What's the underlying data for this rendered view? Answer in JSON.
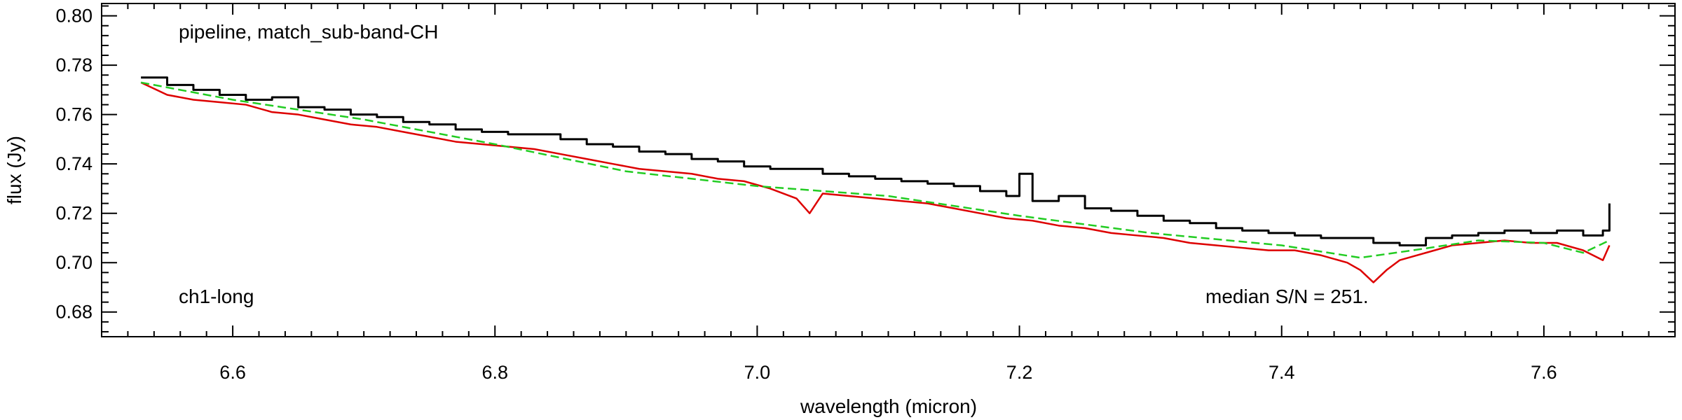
{
  "chart_data": {
    "type": "line",
    "xlabel": "wavelength (micron)",
    "ylabel": "flux (Jy)",
    "xlim": [
      6.5,
      7.7
    ],
    "ylim": [
      0.67,
      0.805
    ],
    "xticks": [
      {
        "value": 6.6,
        "label": "6.6"
      },
      {
        "value": 6.8,
        "label": "6.8"
      },
      {
        "value": 7.0,
        "label": "7.0"
      },
      {
        "value": 7.2,
        "label": "7.2"
      },
      {
        "value": 7.4,
        "label": "7.4"
      },
      {
        "value": 7.6,
        "label": "7.6"
      }
    ],
    "yticks": [
      {
        "value": 0.68,
        "label": "0.68"
      },
      {
        "value": 0.7,
        "label": "0.70"
      },
      {
        "value": 0.72,
        "label": "0.72"
      },
      {
        "value": 0.74,
        "label": "0.74"
      },
      {
        "value": 0.76,
        "label": "0.76"
      },
      {
        "value": 0.78,
        "label": "0.78"
      },
      {
        "value": 0.8,
        "label": "0.80"
      }
    ],
    "annotations": {
      "top_left": "pipeline, match_sub-band-CH",
      "bottom_left": "ch1-long",
      "bottom_right": "median S/N = 251."
    },
    "grid": false,
    "legend": "none",
    "series": [
      {
        "style": "step",
        "color": "#000000",
        "x": [
          6.53,
          6.55,
          6.57,
          6.59,
          6.61,
          6.63,
          6.65,
          6.67,
          6.69,
          6.71,
          6.73,
          6.75,
          6.77,
          6.79,
          6.81,
          6.83,
          6.85,
          6.87,
          6.89,
          6.91,
          6.93,
          6.95,
          6.97,
          6.99,
          7.01,
          7.03,
          7.05,
          7.07,
          7.09,
          7.11,
          7.13,
          7.15,
          7.17,
          7.19,
          7.2,
          7.21,
          7.23,
          7.25,
          7.27,
          7.29,
          7.31,
          7.33,
          7.35,
          7.37,
          7.39,
          7.41,
          7.43,
          7.45,
          7.47,
          7.49,
          7.51,
          7.53,
          7.55,
          7.57,
          7.59,
          7.61,
          7.63,
          7.645,
          7.65
        ],
        "y": [
          0.775,
          0.772,
          0.77,
          0.768,
          0.766,
          0.767,
          0.763,
          0.762,
          0.76,
          0.759,
          0.757,
          0.756,
          0.754,
          0.753,
          0.752,
          0.752,
          0.75,
          0.748,
          0.747,
          0.745,
          0.744,
          0.742,
          0.741,
          0.739,
          0.738,
          0.738,
          0.736,
          0.735,
          0.734,
          0.733,
          0.732,
          0.731,
          0.729,
          0.727,
          0.736,
          0.725,
          0.727,
          0.722,
          0.721,
          0.719,
          0.717,
          0.716,
          0.714,
          0.713,
          0.712,
          0.711,
          0.71,
          0.71,
          0.708,
          0.707,
          0.71,
          0.711,
          0.712,
          0.713,
          0.712,
          0.713,
          0.711,
          0.713,
          0.724
        ]
      },
      {
        "style": "line",
        "color": "#dd0000",
        "x": [
          6.53,
          6.55,
          6.57,
          6.59,
          6.61,
          6.63,
          6.65,
          6.67,
          6.69,
          6.71,
          6.73,
          6.75,
          6.77,
          6.79,
          6.81,
          6.83,
          6.85,
          6.87,
          6.89,
          6.91,
          6.93,
          6.95,
          6.97,
          6.99,
          7.01,
          7.03,
          7.04,
          7.05,
          7.07,
          7.09,
          7.11,
          7.13,
          7.15,
          7.17,
          7.19,
          7.21,
          7.23,
          7.25,
          7.27,
          7.29,
          7.31,
          7.33,
          7.35,
          7.37,
          7.39,
          7.41,
          7.43,
          7.45,
          7.46,
          7.47,
          7.48,
          7.49,
          7.51,
          7.53,
          7.55,
          7.57,
          7.59,
          7.61,
          7.63,
          7.645,
          7.65
        ],
        "y": [
          0.773,
          0.768,
          0.766,
          0.765,
          0.764,
          0.761,
          0.76,
          0.758,
          0.756,
          0.755,
          0.753,
          0.751,
          0.749,
          0.748,
          0.747,
          0.746,
          0.744,
          0.742,
          0.74,
          0.738,
          0.737,
          0.736,
          0.734,
          0.733,
          0.73,
          0.726,
          0.72,
          0.728,
          0.727,
          0.726,
          0.725,
          0.724,
          0.722,
          0.72,
          0.718,
          0.717,
          0.715,
          0.714,
          0.712,
          0.711,
          0.71,
          0.708,
          0.707,
          0.706,
          0.705,
          0.705,
          0.703,
          0.7,
          0.697,
          0.692,
          0.697,
          0.701,
          0.704,
          0.707,
          0.708,
          0.709,
          0.708,
          0.708,
          0.705,
          0.701,
          0.707
        ]
      },
      {
        "style": "dashed",
        "color": "#22cc22",
        "x": [
          6.53,
          6.6,
          6.7,
          6.8,
          6.9,
          7.0,
          7.1,
          7.2,
          7.3,
          7.4,
          7.46,
          7.5,
          7.55,
          7.6,
          7.63,
          7.65
        ],
        "y": [
          0.773,
          0.766,
          0.758,
          0.748,
          0.737,
          0.731,
          0.727,
          0.719,
          0.712,
          0.707,
          0.702,
          0.705,
          0.709,
          0.708,
          0.704,
          0.709
        ]
      }
    ]
  }
}
